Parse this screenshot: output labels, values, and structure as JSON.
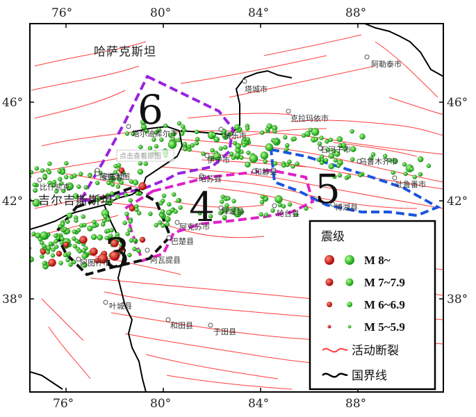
{
  "axes": {
    "lon_ticks": [
      "76°",
      "80°",
      "84°",
      "88°"
    ],
    "lat_ticks": [
      "46°",
      "42°",
      "38°"
    ]
  },
  "regions": {
    "kazakhstan": "哈萨克斯坦",
    "kyrgyzstan": "吉尔吉斯斯坦"
  },
  "cities": [
    {
      "name": "阿勒泰市"
    },
    {
      "name": "塔城市"
    },
    {
      "name": "克拉玛依市"
    },
    {
      "name": "博乐市"
    },
    {
      "name": "塔尔迪库尔干"
    },
    {
      "name": "石河子市"
    },
    {
      "name": "乌鲁木齐市"
    },
    {
      "name": "伊宁市"
    },
    {
      "name": "阿拉木图"
    },
    {
      "name": "吐鲁番市"
    },
    {
      "name": "比什凯克"
    },
    {
      "name": "昭苏县"
    },
    {
      "name": "和静县"
    },
    {
      "name": "博湖县"
    },
    {
      "name": "拜城县"
    },
    {
      "name": "轮台县"
    },
    {
      "name": "阿克苏市"
    },
    {
      "name": "阿图什市"
    },
    {
      "name": "阿瓦提县"
    },
    {
      "name": "巴楚县"
    },
    {
      "name": "叶城县"
    },
    {
      "name": "和田县"
    },
    {
      "name": "于田县"
    },
    {
      "name": "安集延"
    }
  ],
  "zones": [
    "3",
    "4",
    "5",
    "6"
  ],
  "watermark": "点击查看原图",
  "legend": {
    "title": "震级",
    "rows": [
      "M 8~",
      "M 7~7.9",
      "M 6~6.9",
      "M 5~5.9"
    ],
    "fault": "活动断裂",
    "border": "国界线"
  },
  "colors": {
    "fault": "#ff3b3b",
    "border": "#000000",
    "quake_green": "#22cc22",
    "quake_red": "#dd1111",
    "zone3": "#111111",
    "zone4": "#e020c8",
    "zone5": "#1a55e0",
    "zone6": "#9a22dd"
  }
}
